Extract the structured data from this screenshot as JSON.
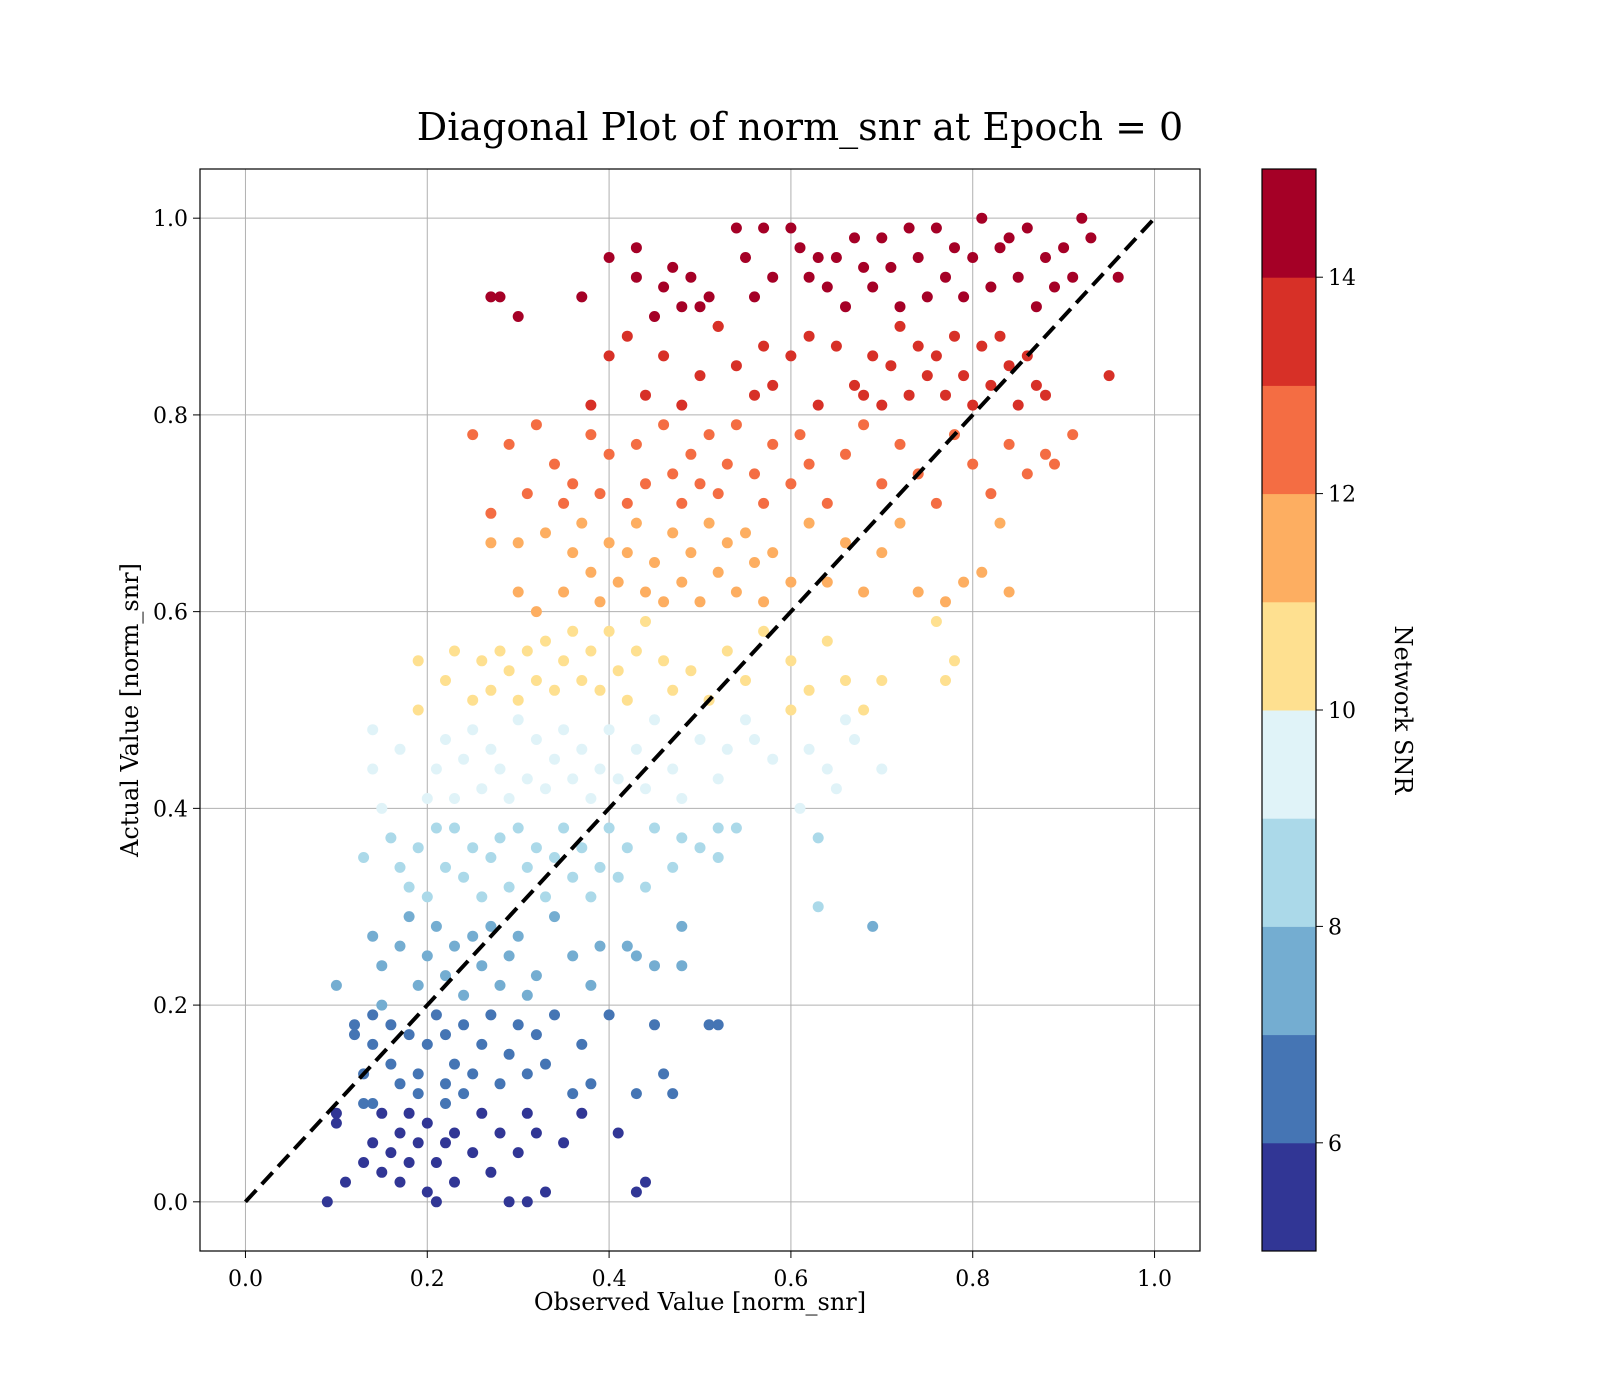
{
  "chart_data": {
    "type": "scatter",
    "title": "Diagonal Plot of norm_snr at Epoch = 0",
    "xlabel": "Observed Value [norm_snr]",
    "ylabel": "Actual Value [norm_snr]",
    "xlim": [
      -0.05,
      1.05
    ],
    "ylim": [
      -0.05,
      1.05
    ],
    "xticks": [
      "0.0",
      "0.2",
      "0.4",
      "0.6",
      "0.8",
      "1.0"
    ],
    "yticks": [
      "0.0",
      "0.2",
      "0.4",
      "0.6",
      "0.8",
      "1.0"
    ],
    "grid": true,
    "reference_line": {
      "x": [
        0,
        1
      ],
      "y": [
        0,
        1
      ],
      "style": "dashed",
      "color": "#000000"
    },
    "colorbar": {
      "label": "Network SNR",
      "range": [
        5,
        15
      ],
      "ticks": [
        "6",
        "8",
        "10",
        "12",
        "14"
      ],
      "colors": [
        "#313695",
        "#4575b4",
        "#74add1",
        "#abd9e9",
        "#e0f3f8",
        "#fee090",
        "#fdae61",
        "#f46d43",
        "#d73027",
        "#a50026"
      ]
    },
    "points": [
      [
        0.09,
        0.0
      ],
      [
        0.1,
        0.08
      ],
      [
        0.11,
        0.02
      ],
      [
        0.12,
        0.17
      ],
      [
        0.13,
        0.1
      ],
      [
        0.13,
        0.04
      ],
      [
        0.14,
        0.06
      ],
      [
        0.14,
        0.1
      ],
      [
        0.15,
        0.03
      ],
      [
        0.15,
        0.09
      ],
      [
        0.16,
        0.05
      ],
      [
        0.17,
        0.02
      ],
      [
        0.17,
        0.07
      ],
      [
        0.18,
        0.09
      ],
      [
        0.18,
        0.04
      ],
      [
        0.19,
        0.06
      ],
      [
        0.19,
        0.11
      ],
      [
        0.2,
        0.01
      ],
      [
        0.2,
        0.08
      ],
      [
        0.21,
        0.04
      ],
      [
        0.21,
        0.0
      ],
      [
        0.22,
        0.1
      ],
      [
        0.22,
        0.06
      ],
      [
        0.23,
        0.02
      ],
      [
        0.23,
        0.07
      ],
      [
        0.24,
        0.11
      ],
      [
        0.25,
        0.05
      ],
      [
        0.26,
        0.09
      ],
      [
        0.27,
        0.03
      ],
      [
        0.28,
        0.07
      ],
      [
        0.29,
        0.0
      ],
      [
        0.3,
        0.05
      ],
      [
        0.31,
        0.0
      ],
      [
        0.31,
        0.09
      ],
      [
        0.32,
        0.07
      ],
      [
        0.33,
        0.01
      ],
      [
        0.35,
        0.06
      ],
      [
        0.37,
        0.09
      ],
      [
        0.41,
        0.07
      ],
      [
        0.43,
        0.01
      ],
      [
        0.44,
        0.02
      ],
      [
        0.14,
        0.19
      ],
      [
        0.1,
        0.09
      ],
      [
        0.1,
        0.22
      ],
      [
        0.12,
        0.18
      ],
      [
        0.13,
        0.13
      ],
      [
        0.14,
        0.16
      ],
      [
        0.15,
        0.2
      ],
      [
        0.16,
        0.14
      ],
      [
        0.16,
        0.18
      ],
      [
        0.17,
        0.12
      ],
      [
        0.18,
        0.17
      ],
      [
        0.19,
        0.13
      ],
      [
        0.2,
        0.16
      ],
      [
        0.21,
        0.19
      ],
      [
        0.22,
        0.12
      ],
      [
        0.22,
        0.17
      ],
      [
        0.23,
        0.14
      ],
      [
        0.24,
        0.18
      ],
      [
        0.25,
        0.13
      ],
      [
        0.26,
        0.16
      ],
      [
        0.27,
        0.19
      ],
      [
        0.28,
        0.12
      ],
      [
        0.29,
        0.15
      ],
      [
        0.3,
        0.18
      ],
      [
        0.31,
        0.13
      ],
      [
        0.32,
        0.17
      ],
      [
        0.33,
        0.14
      ],
      [
        0.34,
        0.19
      ],
      [
        0.36,
        0.11
      ],
      [
        0.37,
        0.16
      ],
      [
        0.38,
        0.12
      ],
      [
        0.4,
        0.19
      ],
      [
        0.43,
        0.11
      ],
      [
        0.45,
        0.18
      ],
      [
        0.46,
        0.13
      ],
      [
        0.47,
        0.11
      ],
      [
        0.51,
        0.18
      ],
      [
        0.52,
        0.18
      ],
      [
        0.14,
        0.27
      ],
      [
        0.15,
        0.24
      ],
      [
        0.17,
        0.26
      ],
      [
        0.18,
        0.29
      ],
      [
        0.19,
        0.22
      ],
      [
        0.2,
        0.25
      ],
      [
        0.21,
        0.28
      ],
      [
        0.22,
        0.23
      ],
      [
        0.23,
        0.26
      ],
      [
        0.24,
        0.21
      ],
      [
        0.25,
        0.27
      ],
      [
        0.26,
        0.24
      ],
      [
        0.27,
        0.28
      ],
      [
        0.28,
        0.22
      ],
      [
        0.29,
        0.25
      ],
      [
        0.3,
        0.27
      ],
      [
        0.31,
        0.21
      ],
      [
        0.32,
        0.23
      ],
      [
        0.34,
        0.29
      ],
      [
        0.36,
        0.25
      ],
      [
        0.38,
        0.22
      ],
      [
        0.39,
        0.26
      ],
      [
        0.42,
        0.26
      ],
      [
        0.43,
        0.25
      ],
      [
        0.45,
        0.24
      ],
      [
        0.48,
        0.28
      ],
      [
        0.48,
        0.24
      ],
      [
        0.63,
        0.3
      ],
      [
        0.69,
        0.28
      ],
      [
        0.13,
        0.35
      ],
      [
        0.16,
        0.37
      ],
      [
        0.17,
        0.34
      ],
      [
        0.18,
        0.32
      ],
      [
        0.19,
        0.36
      ],
      [
        0.2,
        0.31
      ],
      [
        0.21,
        0.38
      ],
      [
        0.22,
        0.34
      ],
      [
        0.23,
        0.38
      ],
      [
        0.24,
        0.33
      ],
      [
        0.25,
        0.36
      ],
      [
        0.26,
        0.31
      ],
      [
        0.27,
        0.35
      ],
      [
        0.28,
        0.37
      ],
      [
        0.29,
        0.32
      ],
      [
        0.3,
        0.38
      ],
      [
        0.31,
        0.34
      ],
      [
        0.32,
        0.36
      ],
      [
        0.33,
        0.31
      ],
      [
        0.34,
        0.35
      ],
      [
        0.35,
        0.38
      ],
      [
        0.36,
        0.33
      ],
      [
        0.37,
        0.36
      ],
      [
        0.38,
        0.31
      ],
      [
        0.39,
        0.34
      ],
      [
        0.4,
        0.38
      ],
      [
        0.41,
        0.33
      ],
      [
        0.42,
        0.36
      ],
      [
        0.44,
        0.32
      ],
      [
        0.45,
        0.38
      ],
      [
        0.47,
        0.34
      ],
      [
        0.48,
        0.37
      ],
      [
        0.5,
        0.36
      ],
      [
        0.52,
        0.38
      ],
      [
        0.52,
        0.35
      ],
      [
        0.54,
        0.38
      ],
      [
        0.63,
        0.37
      ],
      [
        0.14,
        0.48
      ],
      [
        0.14,
        0.44
      ],
      [
        0.15,
        0.4
      ],
      [
        0.17,
        0.46
      ],
      [
        0.19,
        0.5
      ],
      [
        0.2,
        0.41
      ],
      [
        0.21,
        0.44
      ],
      [
        0.22,
        0.47
      ],
      [
        0.23,
        0.41
      ],
      [
        0.24,
        0.45
      ],
      [
        0.25,
        0.48
      ],
      [
        0.26,
        0.42
      ],
      [
        0.27,
        0.46
      ],
      [
        0.28,
        0.44
      ],
      [
        0.29,
        0.41
      ],
      [
        0.3,
        0.49
      ],
      [
        0.31,
        0.43
      ],
      [
        0.32,
        0.47
      ],
      [
        0.33,
        0.42
      ],
      [
        0.34,
        0.45
      ],
      [
        0.35,
        0.48
      ],
      [
        0.36,
        0.43
      ],
      [
        0.37,
        0.46
      ],
      [
        0.38,
        0.41
      ],
      [
        0.39,
        0.44
      ],
      [
        0.4,
        0.48
      ],
      [
        0.41,
        0.43
      ],
      [
        0.43,
        0.46
      ],
      [
        0.44,
        0.42
      ],
      [
        0.45,
        0.49
      ],
      [
        0.47,
        0.44
      ],
      [
        0.48,
        0.41
      ],
      [
        0.5,
        0.47
      ],
      [
        0.52,
        0.43
      ],
      [
        0.53,
        0.46
      ],
      [
        0.55,
        0.49
      ],
      [
        0.56,
        0.47
      ],
      [
        0.58,
        0.45
      ],
      [
        0.6,
        0.5
      ],
      [
        0.61,
        0.4
      ],
      [
        0.62,
        0.46
      ],
      [
        0.64,
        0.44
      ],
      [
        0.65,
        0.42
      ],
      [
        0.66,
        0.49
      ],
      [
        0.67,
        0.47
      ],
      [
        0.68,
        0.5
      ],
      [
        0.7,
        0.44
      ],
      [
        0.19,
        0.55
      ],
      [
        0.22,
        0.53
      ],
      [
        0.23,
        0.56
      ],
      [
        0.25,
        0.51
      ],
      [
        0.26,
        0.55
      ],
      [
        0.27,
        0.52
      ],
      [
        0.28,
        0.56
      ],
      [
        0.29,
        0.54
      ],
      [
        0.3,
        0.51
      ],
      [
        0.31,
        0.56
      ],
      [
        0.32,
        0.53
      ],
      [
        0.33,
        0.57
      ],
      [
        0.34,
        0.52
      ],
      [
        0.35,
        0.55
      ],
      [
        0.36,
        0.58
      ],
      [
        0.37,
        0.53
      ],
      [
        0.38,
        0.56
      ],
      [
        0.39,
        0.52
      ],
      [
        0.4,
        0.58
      ],
      [
        0.41,
        0.54
      ],
      [
        0.42,
        0.51
      ],
      [
        0.43,
        0.56
      ],
      [
        0.44,
        0.59
      ],
      [
        0.46,
        0.55
      ],
      [
        0.47,
        0.52
      ],
      [
        0.49,
        0.54
      ],
      [
        0.51,
        0.51
      ],
      [
        0.53,
        0.56
      ],
      [
        0.55,
        0.53
      ],
      [
        0.57,
        0.58
      ],
      [
        0.6,
        0.55
      ],
      [
        0.62,
        0.52
      ],
      [
        0.64,
        0.57
      ],
      [
        0.66,
        0.53
      ],
      [
        0.7,
        0.53
      ],
      [
        0.77,
        0.53
      ],
      [
        0.78,
        0.55
      ],
      [
        0.76,
        0.59
      ],
      [
        0.27,
        0.7
      ],
      [
        0.27,
        0.67
      ],
      [
        0.3,
        0.62
      ],
      [
        0.3,
        0.67
      ],
      [
        0.32,
        0.6
      ],
      [
        0.33,
        0.68
      ],
      [
        0.35,
        0.62
      ],
      [
        0.36,
        0.66
      ],
      [
        0.37,
        0.69
      ],
      [
        0.38,
        0.64
      ],
      [
        0.39,
        0.61
      ],
      [
        0.4,
        0.67
      ],
      [
        0.41,
        0.63
      ],
      [
        0.42,
        0.66
      ],
      [
        0.43,
        0.69
      ],
      [
        0.44,
        0.62
      ],
      [
        0.45,
        0.65
      ],
      [
        0.46,
        0.61
      ],
      [
        0.47,
        0.68
      ],
      [
        0.48,
        0.63
      ],
      [
        0.49,
        0.66
      ],
      [
        0.5,
        0.61
      ],
      [
        0.51,
        0.69
      ],
      [
        0.52,
        0.64
      ],
      [
        0.53,
        0.67
      ],
      [
        0.54,
        0.62
      ],
      [
        0.55,
        0.68
      ],
      [
        0.56,
        0.65
      ],
      [
        0.57,
        0.61
      ],
      [
        0.58,
        0.66
      ],
      [
        0.6,
        0.63
      ],
      [
        0.62,
        0.69
      ],
      [
        0.64,
        0.63
      ],
      [
        0.66,
        0.67
      ],
      [
        0.68,
        0.62
      ],
      [
        0.7,
        0.66
      ],
      [
        0.72,
        0.69
      ],
      [
        0.74,
        0.62
      ],
      [
        0.77,
        0.61
      ],
      [
        0.79,
        0.63
      ],
      [
        0.81,
        0.64
      ],
      [
        0.83,
        0.69
      ],
      [
        0.84,
        0.62
      ],
      [
        0.25,
        0.78
      ],
      [
        0.29,
        0.77
      ],
      [
        0.31,
        0.72
      ],
      [
        0.32,
        0.79
      ],
      [
        0.34,
        0.75
      ],
      [
        0.35,
        0.71
      ],
      [
        0.36,
        0.73
      ],
      [
        0.38,
        0.78
      ],
      [
        0.39,
        0.72
      ],
      [
        0.4,
        0.76
      ],
      [
        0.42,
        0.71
      ],
      [
        0.43,
        0.77
      ],
      [
        0.44,
        0.73
      ],
      [
        0.46,
        0.79
      ],
      [
        0.47,
        0.74
      ],
      [
        0.48,
        0.71
      ],
      [
        0.49,
        0.76
      ],
      [
        0.5,
        0.73
      ],
      [
        0.51,
        0.78
      ],
      [
        0.52,
        0.72
      ],
      [
        0.53,
        0.75
      ],
      [
        0.54,
        0.79
      ],
      [
        0.56,
        0.74
      ],
      [
        0.57,
        0.71
      ],
      [
        0.58,
        0.77
      ],
      [
        0.6,
        0.73
      ],
      [
        0.61,
        0.78
      ],
      [
        0.62,
        0.75
      ],
      [
        0.64,
        0.71
      ],
      [
        0.66,
        0.76
      ],
      [
        0.68,
        0.79
      ],
      [
        0.7,
        0.73
      ],
      [
        0.72,
        0.77
      ],
      [
        0.74,
        0.74
      ],
      [
        0.76,
        0.71
      ],
      [
        0.78,
        0.78
      ],
      [
        0.8,
        0.75
      ],
      [
        0.82,
        0.72
      ],
      [
        0.84,
        0.77
      ],
      [
        0.86,
        0.74
      ],
      [
        0.88,
        0.76
      ],
      [
        0.89,
        0.75
      ],
      [
        0.91,
        0.78
      ],
      [
        0.38,
        0.81
      ],
      [
        0.4,
        0.86
      ],
      [
        0.42,
        0.88
      ],
      [
        0.44,
        0.82
      ],
      [
        0.46,
        0.86
      ],
      [
        0.48,
        0.81
      ],
      [
        0.5,
        0.84
      ],
      [
        0.52,
        0.89
      ],
      [
        0.54,
        0.85
      ],
      [
        0.56,
        0.82
      ],
      [
        0.57,
        0.87
      ],
      [
        0.58,
        0.83
      ],
      [
        0.6,
        0.86
      ],
      [
        0.62,
        0.88
      ],
      [
        0.63,
        0.81
      ],
      [
        0.65,
        0.87
      ],
      [
        0.67,
        0.83
      ],
      [
        0.68,
        0.82
      ],
      [
        0.69,
        0.86
      ],
      [
        0.7,
        0.81
      ],
      [
        0.71,
        0.85
      ],
      [
        0.72,
        0.89
      ],
      [
        0.73,
        0.82
      ],
      [
        0.74,
        0.87
      ],
      [
        0.75,
        0.84
      ],
      [
        0.76,
        0.86
      ],
      [
        0.77,
        0.82
      ],
      [
        0.78,
        0.88
      ],
      [
        0.79,
        0.84
      ],
      [
        0.8,
        0.81
      ],
      [
        0.81,
        0.87
      ],
      [
        0.82,
        0.83
      ],
      [
        0.83,
        0.88
      ],
      [
        0.84,
        0.85
      ],
      [
        0.85,
        0.81
      ],
      [
        0.86,
        0.86
      ],
      [
        0.87,
        0.83
      ],
      [
        0.88,
        0.82
      ],
      [
        0.95,
        0.84
      ],
      [
        0.27,
        0.92
      ],
      [
        0.28,
        0.92
      ],
      [
        0.3,
        0.9
      ],
      [
        0.37,
        0.92
      ],
      [
        0.4,
        0.96
      ],
      [
        0.43,
        0.97
      ],
      [
        0.43,
        0.94
      ],
      [
        0.45,
        0.9
      ],
      [
        0.46,
        0.93
      ],
      [
        0.47,
        0.95
      ],
      [
        0.48,
        0.91
      ],
      [
        0.49,
        0.94
      ],
      [
        0.5,
        0.91
      ],
      [
        0.51,
        0.92
      ],
      [
        0.52,
        0.89
      ],
      [
        0.54,
        0.99
      ],
      [
        0.55,
        0.96
      ],
      [
        0.56,
        0.92
      ],
      [
        0.57,
        0.99
      ],
      [
        0.58,
        0.94
      ],
      [
        0.6,
        0.99
      ],
      [
        0.61,
        0.97
      ],
      [
        0.62,
        0.94
      ],
      [
        0.63,
        0.96
      ],
      [
        0.64,
        0.93
      ],
      [
        0.65,
        0.96
      ],
      [
        0.66,
        0.91
      ],
      [
        0.67,
        0.98
      ],
      [
        0.68,
        0.95
      ],
      [
        0.69,
        0.93
      ],
      [
        0.7,
        0.98
      ],
      [
        0.71,
        0.95
      ],
      [
        0.72,
        0.91
      ],
      [
        0.73,
        0.99
      ],
      [
        0.74,
        0.96
      ],
      [
        0.75,
        0.92
      ],
      [
        0.76,
        0.99
      ],
      [
        0.77,
        0.94
      ],
      [
        0.78,
        0.97
      ],
      [
        0.79,
        0.92
      ],
      [
        0.8,
        0.96
      ],
      [
        0.81,
        1.0
      ],
      [
        0.82,
        0.93
      ],
      [
        0.83,
        0.97
      ],
      [
        0.84,
        0.98
      ],
      [
        0.85,
        0.94
      ],
      [
        0.86,
        0.99
      ],
      [
        0.87,
        0.91
      ],
      [
        0.88,
        0.96
      ],
      [
        0.89,
        0.93
      ],
      [
        0.9,
        0.97
      ],
      [
        0.91,
        0.94
      ],
      [
        0.92,
        1.0
      ],
      [
        0.93,
        0.98
      ],
      [
        0.96,
        0.94
      ]
    ]
  }
}
